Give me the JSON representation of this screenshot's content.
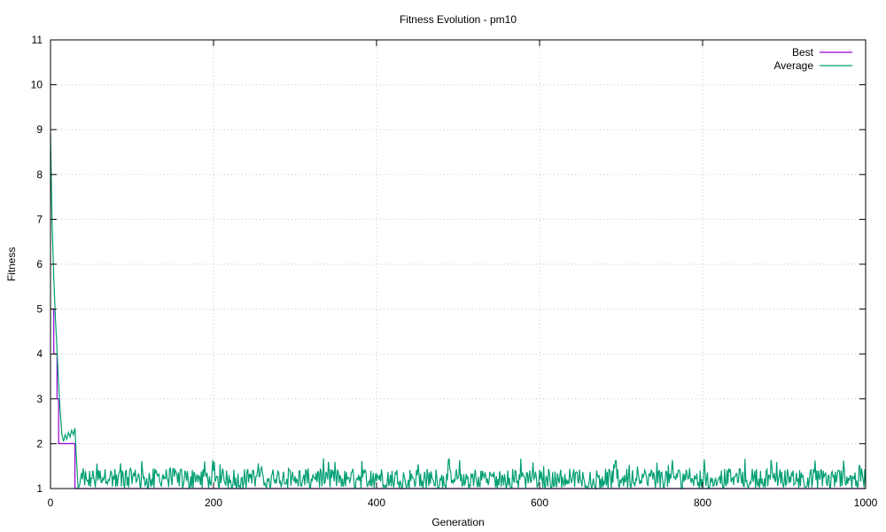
{
  "chart_data": {
    "type": "line",
    "title": "Fitness Evolution - pm10",
    "xlabel": "Generation",
    "ylabel": "Fitness",
    "xlim": [
      0,
      1000
    ],
    "ylim": [
      1,
      11
    ],
    "xticks": [
      0,
      200,
      400,
      600,
      800,
      1000
    ],
    "yticks": [
      1,
      2,
      3,
      4,
      5,
      6,
      7,
      8,
      9,
      10,
      11
    ],
    "grid": true,
    "legend_position": "top-right",
    "series": [
      {
        "name": "Best",
        "color": "#9400d3",
        "points": [
          [
            0,
            5
          ],
          [
            4,
            5
          ],
          [
            4,
            4
          ],
          [
            8,
            4
          ],
          [
            8,
            3
          ],
          [
            10,
            3
          ],
          [
            10,
            2
          ],
          [
            30,
            2
          ],
          [
            30,
            1
          ],
          [
            1000,
            1
          ]
        ]
      },
      {
        "name": "Average",
        "color": "#009e73",
        "points": [
          [
            0,
            8.9
          ],
          [
            2,
            6.9
          ],
          [
            4,
            5.7
          ],
          [
            6,
            4.8
          ],
          [
            8,
            4.1
          ],
          [
            10,
            3.3
          ],
          [
            12,
            2.7
          ],
          [
            14,
            2.2
          ],
          [
            16,
            2.05
          ],
          [
            18,
            2.2
          ],
          [
            20,
            2.1
          ],
          [
            22,
            2.25
          ],
          [
            24,
            2.15
          ],
          [
            26,
            2.3
          ],
          [
            28,
            2.2
          ],
          [
            30,
            2.35
          ],
          [
            32,
            1.6
          ],
          [
            34,
            1.0
          ],
          [
            36,
            1.1
          ],
          [
            38,
            1.35
          ]
        ],
        "noise_region": {
          "from": 38,
          "to": 1000,
          "baseline": 1.25,
          "min": 1.0,
          "max": 1.68
        }
      }
    ]
  }
}
